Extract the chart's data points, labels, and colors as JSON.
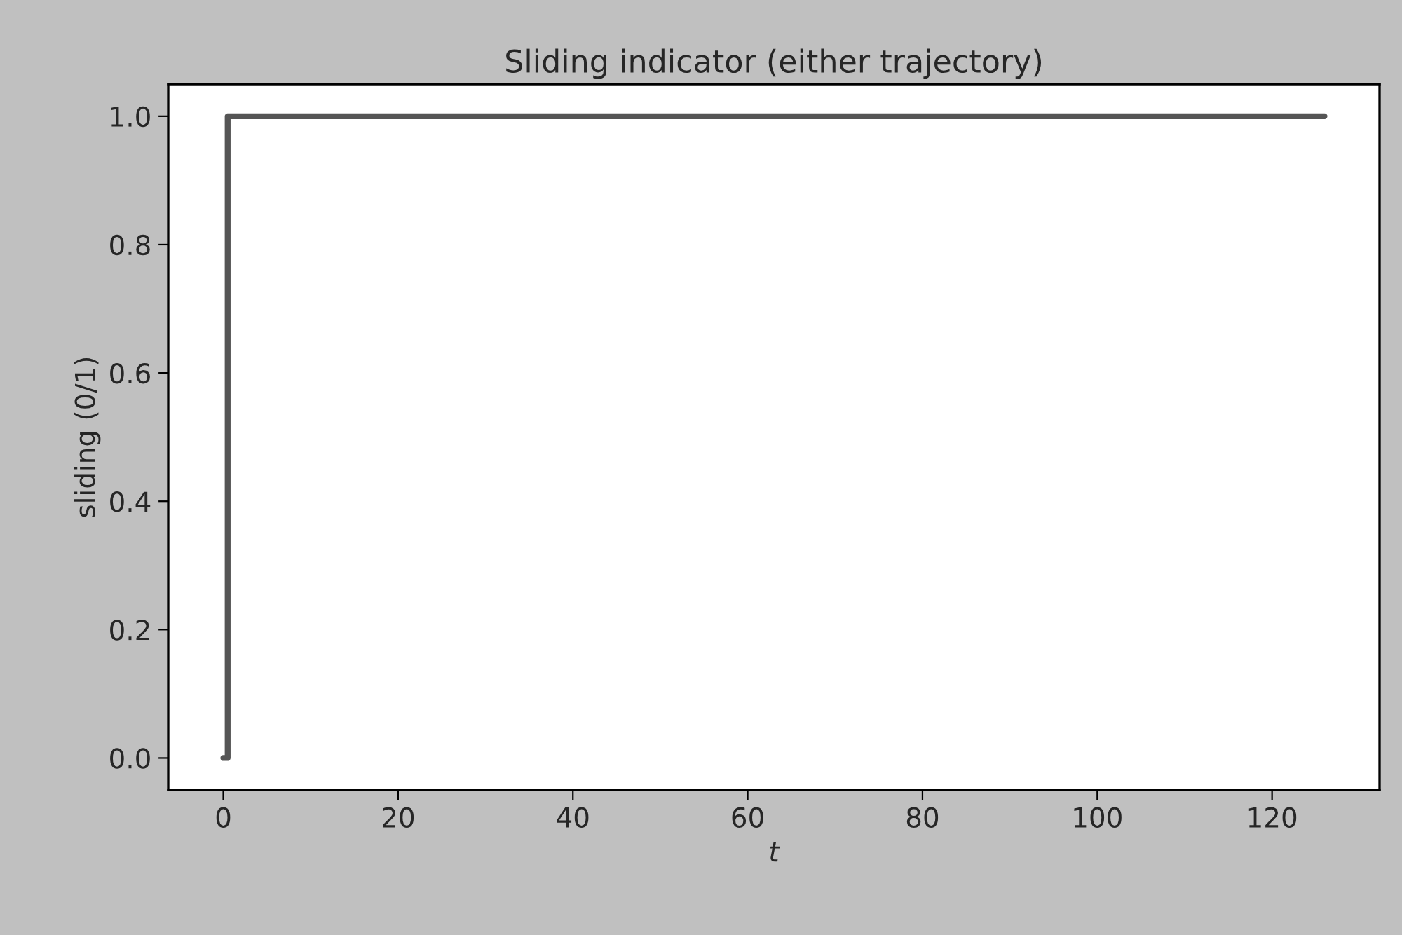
{
  "chart_data": {
    "type": "step",
    "title": "Sliding indicator (either trajectory)",
    "xlabel": "t",
    "ylabel": "sliding (0/1)",
    "x": [
      0,
      0.5,
      126
    ],
    "series": [
      {
        "color": "#555555",
        "values": [
          0,
          1,
          1
        ]
      }
    ],
    "xlim": [
      -6.3,
      132.3
    ],
    "xticks": [
      0,
      20,
      40,
      60,
      80,
      100,
      120
    ],
    "ylim": [
      -0.05,
      1.05
    ],
    "yticks": [
      {
        "value": 0,
        "label": "0.0"
      },
      {
        "value": 0.2,
        "label": "0.2"
      },
      {
        "value": 0.4,
        "label": "0.4"
      },
      {
        "value": 0.6,
        "label": "0.6"
      },
      {
        "value": 0.8,
        "label": "0.8"
      },
      {
        "value": 1,
        "label": "1.0"
      }
    ],
    "grid": false,
    "legend": false
  }
}
